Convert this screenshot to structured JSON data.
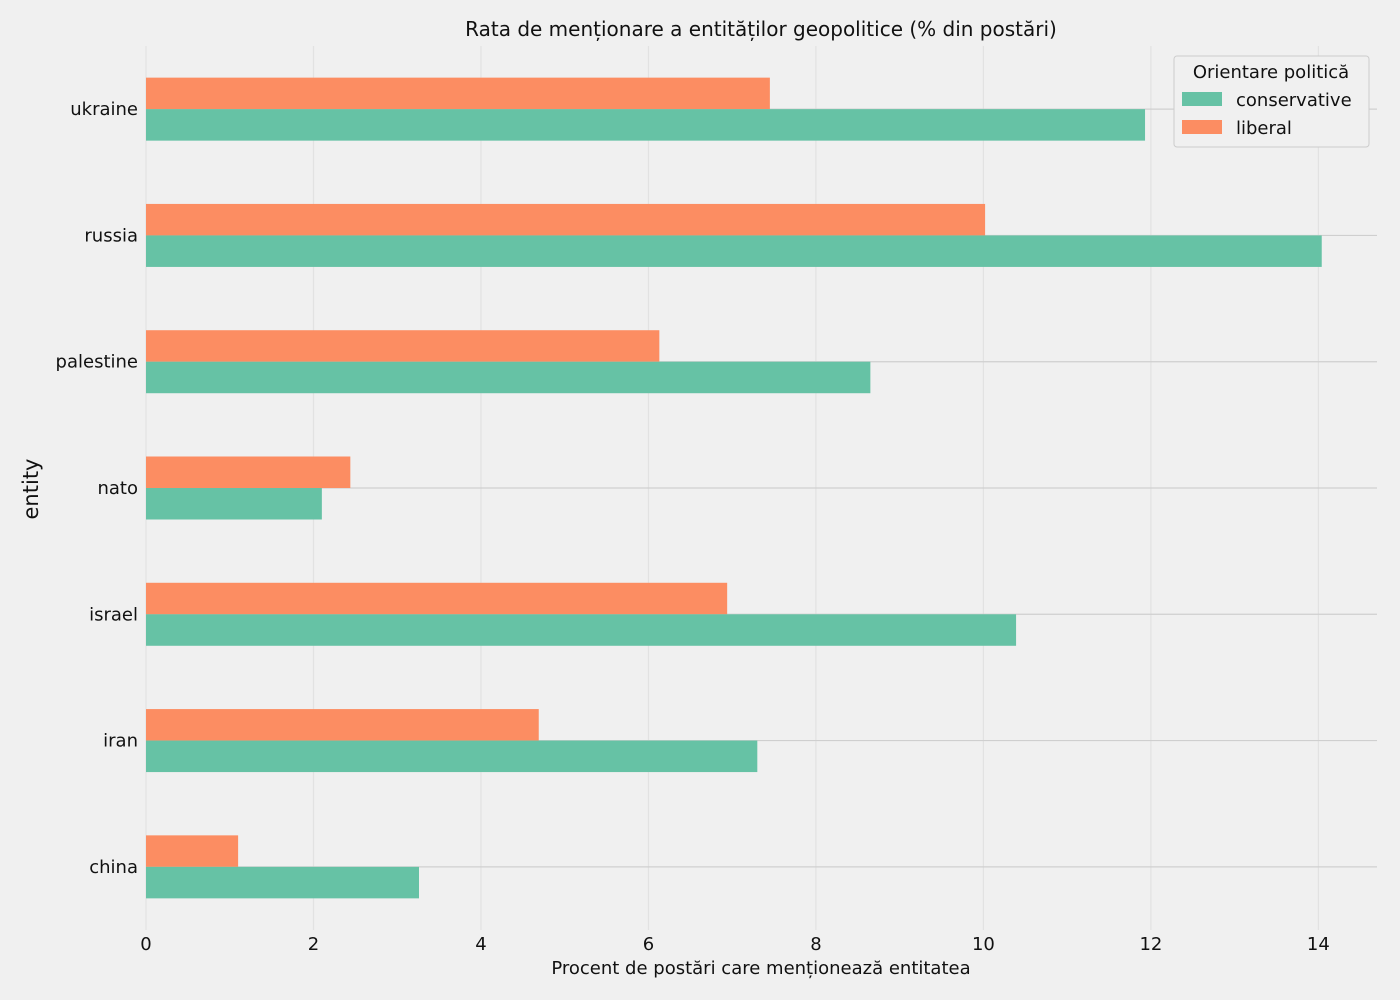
{
  "chart_data": {
    "type": "bar",
    "orientation": "horizontal",
    "title": "Rata de menționare a entităților geopolitice (% din postări)",
    "xlabel": "Procent de postări care menționează entitatea",
    "ylabel": "entity",
    "xlim": [
      0,
      14.7
    ],
    "xticks": [
      0,
      2,
      4,
      6,
      8,
      10,
      12,
      14
    ],
    "grid": true,
    "categories": [
      "ukraine",
      "russia",
      "palestine",
      "nato",
      "israel",
      "iran",
      "china"
    ],
    "series": [
      {
        "name": "conservative",
        "color": "#66c2a5",
        "values": [
          11.93,
          14.04,
          8.65,
          2.1,
          10.39,
          7.3,
          3.26
        ]
      },
      {
        "name": "liberal",
        "color": "#fc8d62",
        "values": [
          7.45,
          10.02,
          6.13,
          2.44,
          6.94,
          4.69,
          1.1
        ]
      }
    ],
    "legend": {
      "title": "Orientare politică",
      "placement": "top-right"
    }
  }
}
